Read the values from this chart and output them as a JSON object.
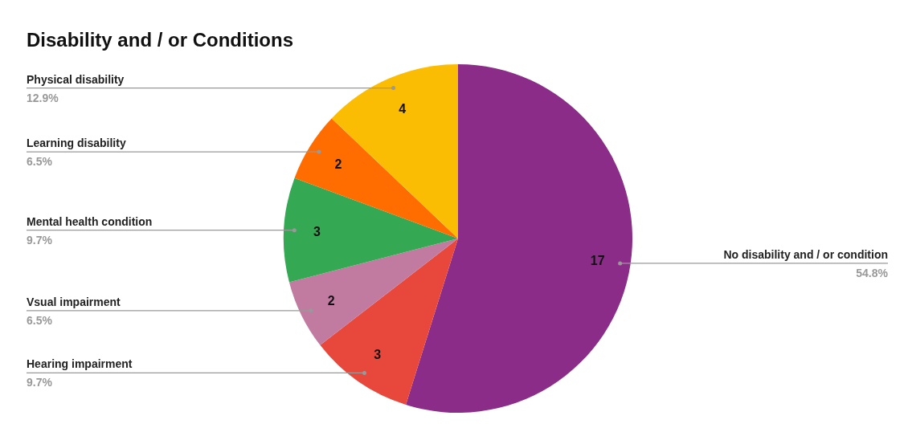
{
  "chart_data": {
    "type": "pie",
    "title": "Disability and / or Conditions",
    "categories": [
      "No disability and / or condition",
      "Hearing impairment",
      "Vsual impairment",
      "Mental health condition",
      "Learning disability",
      "Physical disability"
    ],
    "values": [
      17,
      3,
      2,
      3,
      2,
      4
    ],
    "colors": [
      "#8b2d88",
      "#e8473b",
      "#c27ba0",
      "#34a853",
      "#ff6d01",
      "#fbbc04"
    ],
    "annotations": [
      "54.8%",
      "9.7%",
      "6.5%",
      "9.7%",
      "6.5%",
      "12.9%"
    ],
    "data_labels": true
  }
}
